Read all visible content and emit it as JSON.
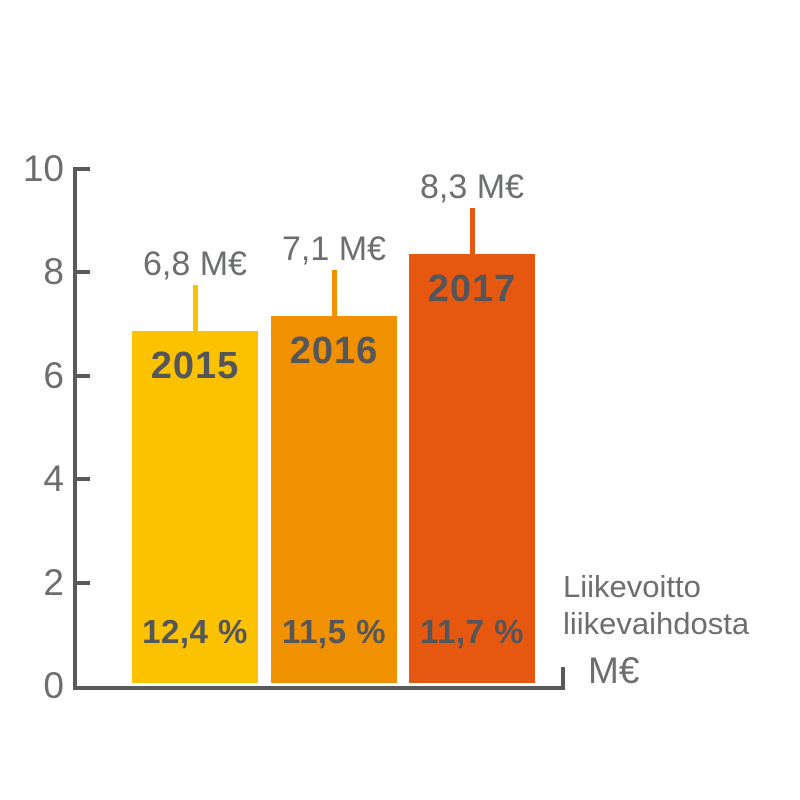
{
  "chart_data": {
    "type": "bar",
    "title": "",
    "xlabel": "",
    "ylabel": "",
    "categories": [
      "2015",
      "2016",
      "2017"
    ],
    "values": [
      6.8,
      7.1,
      8.3
    ],
    "series": [
      {
        "category": "2015",
        "value": 6.8,
        "value_label": "6,8 M€",
        "percent_label": "12,4 %",
        "color": "#FCC200"
      },
      {
        "category": "2016",
        "value": 7.1,
        "value_label": "7,1 M€",
        "percent_label": "11,5 %",
        "color": "#F29100"
      },
      {
        "category": "2017",
        "value": 8.3,
        "value_label": "8,3 M€",
        "percent_label": "11,7 %",
        "color": "#E6570F"
      }
    ],
    "ylim": [
      0,
      10
    ],
    "yticks": [
      0,
      2,
      4,
      6,
      8,
      10
    ],
    "grid": false,
    "legend": "none",
    "annotation_lines": [
      "Liikevoitto",
      "liikevaihdosta"
    ],
    "axis_unit_label": "M€"
  },
  "colors": {
    "axis": "#58595B",
    "muted_text": "#6D6E70",
    "dark_text": "#54565A",
    "background": "#FFFFFF"
  }
}
